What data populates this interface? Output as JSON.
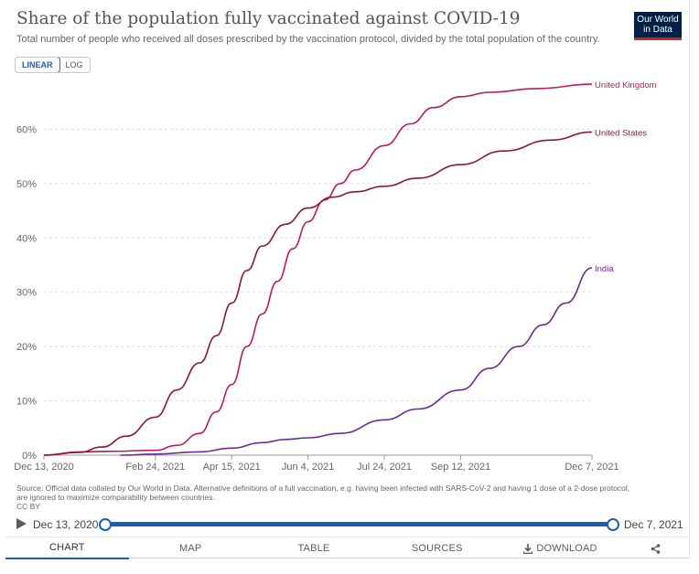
{
  "header": {
    "title": "Share of the population fully vaccinated against COVID-19",
    "subtitle": "Total number of people who received all doses prescribed by the vaccination protocol, divided by the total population of the country.",
    "logo_line1": "Our World",
    "logo_line2": "in Data"
  },
  "scale_toggle": {
    "linear": "LINEAR",
    "log": "LOG",
    "selected": "LINEAR"
  },
  "chart_data": {
    "type": "line",
    "title": "Share of the population fully vaccinated against COVID-19",
    "subtitle": "Total number of people who received all doses prescribed by the vaccination protocol, divided by the total population of the country.",
    "xlabel": "",
    "ylabel": "",
    "x_axis": {
      "type": "date",
      "range": [
        "2020-12-13",
        "2021-12-07"
      ],
      "ticks": [
        "2020-12-13",
        "2021-02-24",
        "2021-04-15",
        "2021-06-04",
        "2021-07-24",
        "2021-09-12",
        "2021-12-07"
      ],
      "tick_labels": [
        "Dec 13, 2020",
        "Feb 24, 2021",
        "Apr 15, 2021",
        "Jun 4, 2021",
        "Jul 24, 2021",
        "Sep 12, 2021",
        "Dec 7, 2021"
      ]
    },
    "y_axis": {
      "range": [
        0,
        70
      ],
      "ticks": [
        0,
        10,
        20,
        30,
        40,
        50,
        60
      ],
      "tick_labels": [
        "0%",
        "10%",
        "20%",
        "30%",
        "40%",
        "50%",
        "60%"
      ],
      "unit": "%"
    },
    "grid": true,
    "legend": "inline labels at line ends",
    "series": [
      {
        "name": "United Kingdom",
        "color": "#c2185b",
        "points": [
          [
            "2020-12-13",
            0
          ],
          [
            "2021-01-05",
            0.6
          ],
          [
            "2021-01-25",
            0.7
          ],
          [
            "2021-02-24",
            0.9
          ],
          [
            "2021-03-10",
            1.8
          ],
          [
            "2021-03-25",
            4
          ],
          [
            "2021-04-05",
            8
          ],
          [
            "2021-04-15",
            13
          ],
          [
            "2021-04-25",
            20
          ],
          [
            "2021-05-05",
            26
          ],
          [
            "2021-05-15",
            32
          ],
          [
            "2021-05-25",
            38
          ],
          [
            "2021-06-04",
            43
          ],
          [
            "2021-06-15",
            47
          ],
          [
            "2021-06-25",
            50
          ],
          [
            "2021-07-05",
            52.5
          ],
          [
            "2021-07-24",
            57
          ],
          [
            "2021-08-10",
            61
          ],
          [
            "2021-08-25",
            64
          ],
          [
            "2021-09-12",
            66
          ],
          [
            "2021-10-01",
            66.8
          ],
          [
            "2021-11-01",
            67.5
          ],
          [
            "2021-12-07",
            68.3
          ]
        ]
      },
      {
        "name": "United States",
        "color": "#8b1a2b",
        "points": [
          [
            "2020-12-13",
            0
          ],
          [
            "2021-01-05",
            0.5
          ],
          [
            "2021-01-20",
            1.5
          ],
          [
            "2021-02-05",
            3.5
          ],
          [
            "2021-02-24",
            7
          ],
          [
            "2021-03-10",
            12
          ],
          [
            "2021-03-25",
            17
          ],
          [
            "2021-04-05",
            22
          ],
          [
            "2021-04-15",
            28
          ],
          [
            "2021-04-25",
            34
          ],
          [
            "2021-05-05",
            38.5
          ],
          [
            "2021-05-20",
            42.5
          ],
          [
            "2021-06-04",
            45.5
          ],
          [
            "2021-06-20",
            47.5
          ],
          [
            "2021-07-05",
            48.5
          ],
          [
            "2021-07-24",
            49.5
          ],
          [
            "2021-08-15",
            51
          ],
          [
            "2021-09-12",
            53.5
          ],
          [
            "2021-10-10",
            56
          ],
          [
            "2021-11-10",
            58
          ],
          [
            "2021-12-07",
            59.5
          ]
        ]
      },
      {
        "name": "India",
        "color": "#6a2c91",
        "points": [
          [
            "2021-02-01",
            0
          ],
          [
            "2021-02-24",
            0.2
          ],
          [
            "2021-03-25",
            0.6
          ],
          [
            "2021-04-15",
            1.3
          ],
          [
            "2021-05-05",
            2.3
          ],
          [
            "2021-05-20",
            2.9
          ],
          [
            "2021-06-04",
            3.2
          ],
          [
            "2021-06-25",
            4
          ],
          [
            "2021-07-24",
            6.5
          ],
          [
            "2021-08-15",
            8.5
          ],
          [
            "2021-09-12",
            12
          ],
          [
            "2021-10-01",
            16
          ],
          [
            "2021-10-20",
            20
          ],
          [
            "2021-11-05",
            24
          ],
          [
            "2021-11-20",
            28
          ],
          [
            "2021-12-07",
            34.5
          ]
        ]
      }
    ]
  },
  "source_note": {
    "line1": "Source: Official data collated by Our World in Data. Alternative definitions of a full vaccination, e.g. having been infected with SARS-CoV-2 and having 1 dose of a 2-dose protocol,",
    "line2": "are ignored to maximize comparability between countries.",
    "line3": "CC BY"
  },
  "timeline": {
    "start": "Dec 13, 2020",
    "end": "Dec 7, 2021",
    "start_value": 0,
    "end_value": 1
  },
  "tabs": {
    "chart": "CHART",
    "map": "MAP",
    "table": "TABLE",
    "sources": "SOURCES",
    "download": "DOWNLOAD",
    "active": "CHART"
  },
  "icons": {
    "play": "play-icon",
    "download": "download-icon",
    "share": "share-icon"
  }
}
